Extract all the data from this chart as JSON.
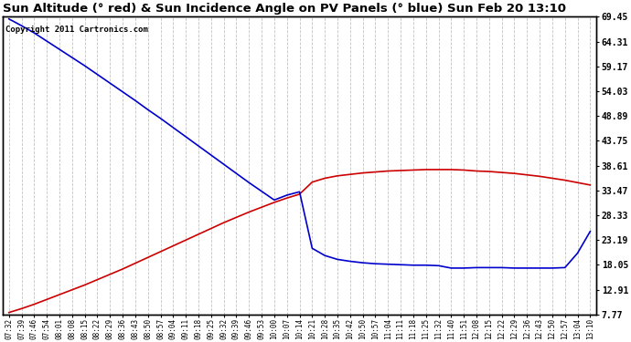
{
  "title": "Sun Altitude (° red) & Sun Incidence Angle on PV Panels (° blue) Sun Feb 20 13:10",
  "copyright": "Copyright 2011 Cartronics.com",
  "yticks": [
    7.77,
    12.91,
    18.05,
    23.19,
    28.33,
    33.47,
    38.61,
    43.75,
    48.89,
    54.03,
    59.17,
    64.31,
    69.45
  ],
  "background_color": "#ffffff",
  "grid_color": "#bbbbbb",
  "x_labels": [
    "07:32",
    "07:39",
    "07:46",
    "07:54",
    "08:01",
    "08:08",
    "08:15",
    "08:22",
    "08:29",
    "08:36",
    "08:43",
    "08:50",
    "08:57",
    "09:04",
    "09:11",
    "09:18",
    "09:25",
    "09:32",
    "09:39",
    "09:46",
    "09:53",
    "10:00",
    "10:07",
    "10:14",
    "10:21",
    "10:28",
    "10:35",
    "10:42",
    "10:50",
    "10:57",
    "11:04",
    "11:11",
    "11:18",
    "11:25",
    "11:32",
    "11:40",
    "11:51",
    "12:08",
    "12:15",
    "12:22",
    "12:29",
    "12:36",
    "12:43",
    "12:50",
    "12:57",
    "13:04",
    "13:10"
  ],
  "red_y": [
    8.2,
    9.0,
    9.9,
    10.9,
    11.9,
    12.9,
    13.9,
    15.0,
    16.1,
    17.2,
    18.4,
    19.6,
    20.8,
    22.0,
    23.2,
    24.4,
    25.6,
    26.8,
    27.9,
    29.0,
    30.0,
    31.0,
    31.9,
    32.7,
    35.2,
    36.0,
    36.5,
    36.8,
    37.1,
    37.3,
    37.5,
    37.6,
    37.7,
    37.8,
    37.8,
    37.8,
    37.7,
    37.5,
    37.4,
    37.2,
    37.0,
    36.7,
    36.4,
    36.0,
    35.6,
    35.1,
    34.6
  ],
  "blue_y": [
    69.0,
    67.6,
    66.1,
    64.4,
    62.7,
    61.0,
    59.3,
    57.5,
    55.7,
    53.9,
    52.1,
    50.2,
    48.4,
    46.5,
    44.6,
    42.7,
    40.8,
    38.9,
    37.0,
    35.1,
    33.3,
    31.5,
    32.5,
    33.2,
    21.5,
    20.0,
    19.2,
    18.8,
    18.5,
    18.3,
    18.2,
    18.1,
    18.0,
    18.0,
    17.9,
    17.4,
    17.4,
    17.5,
    17.5,
    17.5,
    17.4,
    17.4,
    17.4,
    17.4,
    17.5,
    20.5,
    25.0
  ],
  "red_color": "#cc0000",
  "blue_color": "#0000cc",
  "ylim_min": 7.77,
  "ylim_max": 69.45
}
